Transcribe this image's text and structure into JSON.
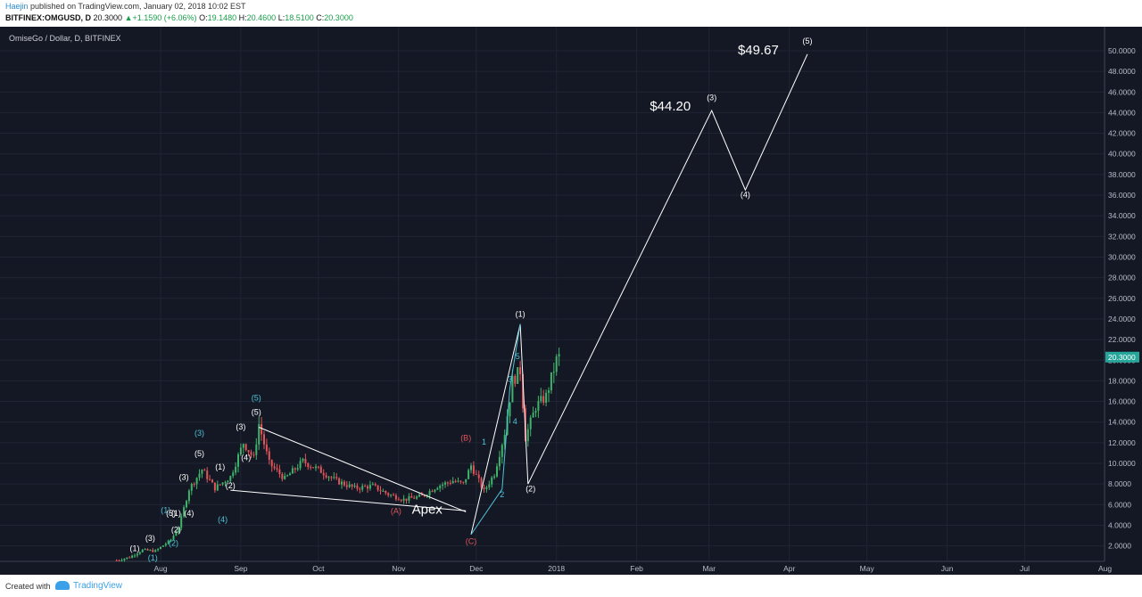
{
  "header": {
    "author": "Haejin",
    "published": "published on TradingView.com, January 02, 2018 10:02 EST",
    "symbol": "BITFINEX:OMGUSD, D",
    "last": "20.3000",
    "change": "+1.1590 (+6.06%)",
    "o_label": "O:",
    "o_value": "19.1480",
    "h_label": "H:",
    "h_value": "20.4600",
    "l_label": "L:",
    "l_value": "18.5100",
    "c_label": "C:",
    "c_value": "20.3000"
  },
  "footer": {
    "created_with": "Created with",
    "brand": "TradingView"
  },
  "colors": {
    "background": "#141824",
    "up": "#3fb36b",
    "down": "#e0545a",
    "grid": "#1f2534",
    "wave_white": "#ffffff",
    "wave_cyan": "#4fc3d6",
    "wave_red": "#e0545a",
    "last_price": "#26a69a"
  },
  "chart_data": {
    "type": "candlestick",
    "title": "OmiseGo / Dollar, D, BITFINEX",
    "x_ticks": [
      "Aug",
      "Sep",
      "Oct",
      "Nov",
      "Dec",
      "2018",
      "Feb",
      "Mar",
      "Apr",
      "May",
      "Jun",
      "Jul",
      "Aug"
    ],
    "y_ticks": [
      "2.0000",
      "4.0000",
      "6.0000",
      "8.0000",
      "10.0000",
      "12.0000",
      "14.0000",
      "16.0000",
      "18.0000",
      "20.0000",
      "22.0000",
      "24.0000",
      "26.0000",
      "28.0000",
      "30.0000",
      "32.0000",
      "34.0000",
      "36.0000",
      "38.0000",
      "40.0000",
      "42.0000",
      "44.0000",
      "46.0000",
      "48.0000",
      "50.0000"
    ],
    "ylim": [
      0.5,
      50.6
    ],
    "last_price_label": "20.3000",
    "last_price": 20.3,
    "price_path": [
      [
        "2017-07-15",
        0.6
      ],
      [
        "2017-07-20",
        0.9
      ],
      [
        "2017-07-25",
        1.6
      ],
      [
        "2017-07-30",
        1.5
      ],
      [
        "2017-08-05",
        2.6
      ],
      [
        "2017-08-08",
        3.8
      ],
      [
        "2017-08-12",
        7.5
      ],
      [
        "2017-08-17",
        9.4
      ],
      [
        "2017-08-22",
        7.6
      ],
      [
        "2017-08-28",
        8.7
      ],
      [
        "2017-09-02",
        12.0
      ],
      [
        "2017-09-06",
        10.5
      ],
      [
        "2017-09-08",
        13.8
      ],
      [
        "2017-09-12",
        10.0
      ],
      [
        "2017-09-18",
        8.5
      ],
      [
        "2017-09-25",
        10.2
      ],
      [
        "2017-10-01",
        9.4
      ],
      [
        "2017-10-08",
        8.3
      ],
      [
        "2017-10-15",
        7.6
      ],
      [
        "2017-10-22",
        7.8
      ],
      [
        "2017-10-28",
        7.0
      ],
      [
        "2017-11-03",
        6.5
      ],
      [
        "2017-11-10",
        6.8
      ],
      [
        "2017-11-16",
        7.8
      ],
      [
        "2017-11-22",
        8.3
      ],
      [
        "2017-11-26",
        8.0
      ],
      [
        "2017-11-29",
        9.8
      ],
      [
        "2017-12-04",
        7.3
      ],
      [
        "2017-12-08",
        9.0
      ],
      [
        "2017-12-12",
        13.0
      ],
      [
        "2017-12-15",
        18.0
      ],
      [
        "2017-12-18",
        19.0
      ],
      [
        "2017-12-20",
        12.5
      ],
      [
        "2017-12-24",
        15.5
      ],
      [
        "2017-12-28",
        16.5
      ],
      [
        "2018-01-01",
        20.0
      ],
      [
        "2018-01-02",
        20.3
      ]
    ],
    "lines": [
      {
        "color": "white",
        "points": [
          [
            "2017-11-29",
            3.1
          ],
          [
            "2017-12-18",
            23.5
          ],
          [
            "2017-12-21",
            8.0
          ],
          [
            "2018-03-02",
            44.2
          ],
          [
            "2018-03-15",
            36.5
          ],
          [
            "2018-04-08",
            49.67
          ]
        ]
      },
      {
        "color": "white",
        "points": [
          [
            "2017-09-08",
            13.5
          ],
          [
            "2017-11-27",
            5.3
          ]
        ]
      },
      {
        "color": "white",
        "points": [
          [
            "2017-08-28",
            7.4
          ],
          [
            "2017-11-27",
            5.4
          ]
        ]
      },
      {
        "color": "cyan",
        "points": [
          [
            "2017-11-29",
            3.1
          ],
          [
            "2017-12-11",
            7.5
          ],
          [
            "2017-12-14",
            17.3
          ],
          [
            "2017-12-18",
            23.5
          ]
        ]
      }
    ],
    "annotations": [
      {
        "text": "(1)",
        "x": "2017-07-22",
        "y": 1.5,
        "color": "white"
      },
      {
        "text": "(3)",
        "x": "2017-07-28",
        "y": 2.5,
        "color": "white"
      },
      {
        "text": "(1)",
        "x": "2017-07-29",
        "y": 0.6,
        "color": "cyan"
      },
      {
        "text": "(2)",
        "x": "2017-08-07",
        "y": 3.3,
        "color": "white"
      },
      {
        "text": "(2)",
        "x": "2017-08-06",
        "y": 2.0,
        "color": "cyan"
      },
      {
        "text": "(1)",
        "x": "2017-08-03",
        "y": 5.2,
        "color": "cyan"
      },
      {
        "text": "(5)",
        "x": "2017-08-05",
        "y": 4.9,
        "color": "white"
      },
      {
        "text": "(1)",
        "x": "2017-08-07",
        "y": 4.9,
        "color": "white"
      },
      {
        "text": "(4)",
        "x": "2017-08-12",
        "y": 4.9,
        "color": "white"
      },
      {
        "text": "(3)",
        "x": "2017-08-10",
        "y": 8.4,
        "color": "white"
      },
      {
        "text": "(5)",
        "x": "2017-08-16",
        "y": 10.7,
        "color": "white"
      },
      {
        "text": "(3)",
        "x": "2017-08-16",
        "y": 12.7,
        "color": "cyan"
      },
      {
        "text": "(4)",
        "x": "2017-08-25",
        "y": 4.3,
        "color": "cyan"
      },
      {
        "text": "(1)",
        "x": "2017-08-24",
        "y": 9.4,
        "color": "white"
      },
      {
        "text": "(2)",
        "x": "2017-08-28",
        "y": 7.6,
        "color": "white"
      },
      {
        "text": "(3)",
        "x": "2017-09-01",
        "y": 13.3,
        "color": "white"
      },
      {
        "text": "(4)",
        "x": "2017-09-03",
        "y": 10.3,
        "color": "white"
      },
      {
        "text": "(5)",
        "x": "2017-09-07",
        "y": 14.7,
        "color": "white"
      },
      {
        "text": "(5)",
        "x": "2017-09-07",
        "y": 16.1,
        "color": "cyan"
      },
      {
        "text": "(A)",
        "x": "2017-10-31",
        "y": 5.1,
        "color": "red"
      },
      {
        "text": "Apex",
        "x": "2017-11-12",
        "y": 5.1,
        "color": "white",
        "size": "large"
      },
      {
        "text": "(B)",
        "x": "2017-11-27",
        "y": 12.2,
        "color": "red"
      },
      {
        "text": "(C)",
        "x": "2017-11-29",
        "y": 2.2,
        "color": "red"
      },
      {
        "text": "1",
        "x": "2017-12-04",
        "y": 11.8,
        "color": "cyan"
      },
      {
        "text": "2",
        "x": "2017-12-11",
        "y": 6.7,
        "color": "cyan"
      },
      {
        "text": "3",
        "x": "2017-12-14",
        "y": 17.9,
        "color": "cyan"
      },
      {
        "text": "4",
        "x": "2017-12-16",
        "y": 13.8,
        "color": "cyan"
      },
      {
        "text": "5",
        "x": "2017-12-17",
        "y": 20.1,
        "color": "cyan"
      },
      {
        "text": "(1)",
        "x": "2017-12-18",
        "y": 24.2,
        "color": "white"
      },
      {
        "text": "(2)",
        "x": "2017-12-22",
        "y": 7.3,
        "color": "white"
      },
      {
        "text": "$44.20",
        "x": "2018-02-14",
        "y": 44.2,
        "color": "white",
        "size": "large"
      },
      {
        "text": "(3)",
        "x": "2018-03-02",
        "y": 45.2,
        "color": "white"
      },
      {
        "text": "(4)",
        "x": "2018-03-15",
        "y": 35.8,
        "color": "white"
      },
      {
        "text": "$49.67",
        "x": "2018-03-20",
        "y": 49.67,
        "color": "white",
        "size": "large"
      },
      {
        "text": "(5)",
        "x": "2018-04-08",
        "y": 50.7,
        "color": "white"
      }
    ]
  }
}
